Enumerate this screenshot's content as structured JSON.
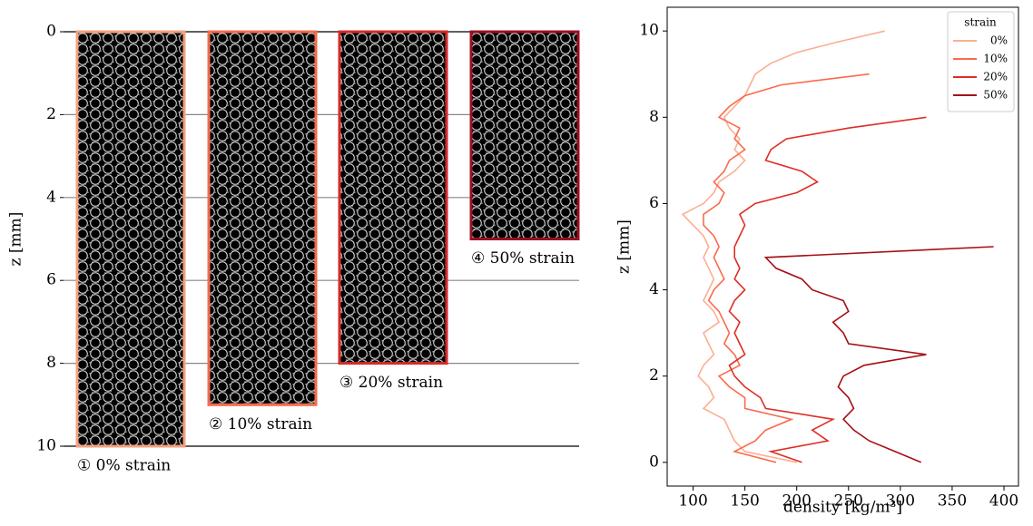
{
  "chart_data": [
    {
      "type": "image-columns",
      "ylabel": "z [mm]",
      "ylim": [
        0,
        10
      ],
      "yticks": [
        0,
        2,
        4,
        6,
        8,
        10
      ],
      "grid": true,
      "columns": [
        {
          "label": "① 0% strain",
          "depth": 10,
          "color": "#f6a07e"
        },
        {
          "label": "② 10% strain",
          "depth": 9,
          "color": "#f36b4c"
        },
        {
          "label": "③ 20% strain",
          "depth": 8,
          "color": "#d42a2a"
        },
        {
          "label": "④ 50% strain",
          "depth": 5,
          "color": "#9c1020"
        }
      ]
    },
    {
      "type": "line",
      "xlabel": "density [kg/m³]",
      "ylabel": "z [mm]",
      "xlim": [
        75,
        414
      ],
      "xticks": [
        100,
        150,
        200,
        250,
        300,
        350,
        400
      ],
      "ylim": [
        10.55,
        -0.55
      ],
      "yticks": [
        0,
        2,
        4,
        6,
        8,
        10
      ],
      "grid": false,
      "legend_title": "strain",
      "legend": "upper right",
      "series": [
        {
          "name": "0%",
          "color": "#fcae91",
          "z": [
            0,
            0.25,
            0.5,
            0.75,
            1,
            1.25,
            1.5,
            1.75,
            2,
            2.25,
            2.5,
            2.75,
            3,
            3.25,
            3.5,
            3.75,
            4,
            4.25,
            4.5,
            4.75,
            5,
            5.25,
            5.5,
            5.75,
            6,
            6.25,
            6.5,
            6.75,
            7,
            7.25,
            7.5,
            7.75,
            8,
            8.25,
            8.5,
            8.75,
            9,
            9.25,
            9.5,
            9.75,
            10
          ],
          "values": [
            200,
            150,
            140,
            135,
            130,
            110,
            120,
            115,
            105,
            110,
            120,
            115,
            110,
            125,
            120,
            110,
            115,
            120,
            115,
            110,
            115,
            110,
            100,
            90,
            110,
            120,
            125,
            140,
            150,
            140,
            145,
            135,
            130,
            140,
            150,
            155,
            160,
            175,
            200,
            240,
            285
          ]
        },
        {
          "name": "10%",
          "color": "#fb6a4a",
          "z": [
            0,
            0.25,
            0.5,
            0.75,
            1,
            1.25,
            1.5,
            1.75,
            2,
            2.25,
            2.5,
            2.75,
            3,
            3.25,
            3.5,
            3.75,
            4,
            4.25,
            4.5,
            4.75,
            5,
            5.25,
            5.5,
            5.75,
            6,
            6.25,
            6.5,
            6.75,
            7,
            7.25,
            7.5,
            7.75,
            8,
            8.25,
            8.5,
            8.75,
            9
          ],
          "values": [
            180,
            140,
            160,
            170,
            195,
            150,
            150,
            135,
            125,
            145,
            140,
            130,
            135,
            130,
            125,
            115,
            120,
            130,
            125,
            120,
            125,
            120,
            110,
            110,
            125,
            130,
            120,
            130,
            135,
            150,
            140,
            145,
            125,
            135,
            150,
            185,
            270
          ]
        },
        {
          "name": "20%",
          "color": "#de2d26",
          "z": [
            0,
            0.25,
            0.5,
            0.75,
            1,
            1.25,
            1.5,
            1.75,
            2,
            2.25,
            2.5,
            2.75,
            3,
            3.25,
            3.5,
            3.75,
            4,
            4.25,
            4.5,
            4.75,
            5,
            5.25,
            5.5,
            5.75,
            6,
            6.25,
            6.5,
            6.75,
            7,
            7.25,
            7.5,
            7.75,
            8
          ],
          "values": [
            205,
            175,
            230,
            215,
            235,
            170,
            165,
            150,
            140,
            135,
            150,
            145,
            140,
            145,
            135,
            140,
            150,
            140,
            145,
            140,
            140,
            145,
            150,
            145,
            160,
            200,
            220,
            205,
            170,
            175,
            190,
            250,
            325
          ]
        },
        {
          "name": "50%",
          "color": "#a50f15",
          "z": [
            0,
            0.25,
            0.5,
            0.75,
            1,
            1.25,
            1.5,
            1.75,
            2,
            2.25,
            2.5,
            2.75,
            3,
            3.25,
            3.5,
            3.75,
            4,
            4.25,
            4.5,
            4.75,
            5
          ],
          "values": [
            320,
            295,
            270,
            255,
            245,
            255,
            250,
            240,
            245,
            265,
            325,
            250,
            245,
            235,
            250,
            245,
            215,
            205,
            180,
            170,
            390
          ]
        }
      ]
    }
  ]
}
